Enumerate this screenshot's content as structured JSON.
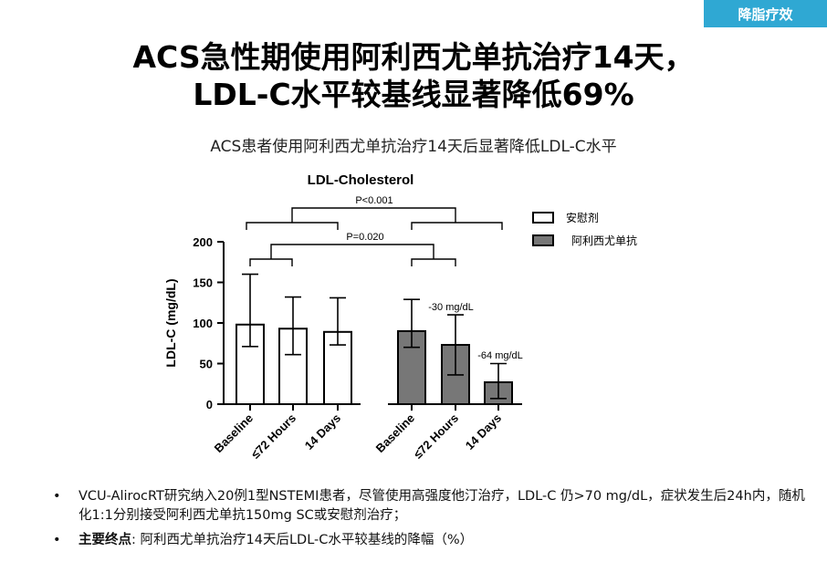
{
  "tag": "降脂疗效",
  "title_line1": "ACS急性期使用阿利西尤单抗治疗14天，",
  "title_line2": "LDL-C水平较基线显著降低69%",
  "subtitle": "ACS患者使用阿利西尤单抗治疗14天后显著降低LDL-C水平",
  "chart_data": {
    "type": "bar",
    "title": "LDL-Cholesterol",
    "ylabel": "LDL-C (mg/dL)",
    "xlabel": "",
    "ylim": [
      0,
      200
    ],
    "yticks": [
      0,
      50,
      100,
      150,
      200
    ],
    "categories": [
      "Baseline",
      "≤72 Hours",
      "14 Days"
    ],
    "series": [
      {
        "name": "安慰剂",
        "color": "#ffffff",
        "values": [
          98,
          93,
          89
        ],
        "err_upper": [
          160,
          132,
          131
        ],
        "err_lower": [
          71,
          61,
          73
        ]
      },
      {
        "name": "阿利西尤单抗",
        "color": "#777777",
        "values": [
          90,
          73,
          27
        ],
        "err_upper": [
          129,
          110,
          50
        ],
        "err_lower": [
          70,
          36,
          7
        ]
      }
    ],
    "annotations": [
      "-30 mg/dL",
      "-64 mg/dL"
    ],
    "significance": [
      "P<0.001",
      "P=0.020"
    ],
    "legend_position": "top-right"
  },
  "bullets": [
    {
      "bold": "",
      "text": "VCU-AlirocRT研究纳入20例1型NSTEMI患者，尽管使用高强度他汀治疗，LDL-C 仍>70 mg/dL，症状发生后24h内，随机化1:1分别接受阿利西尤单抗150mg SC或安慰剂治疗；"
    },
    {
      "bold": "主要终点",
      "text": ": 阿利西尤单抗治疗14天后LDL-C水平较基线的降幅（%）"
    }
  ]
}
